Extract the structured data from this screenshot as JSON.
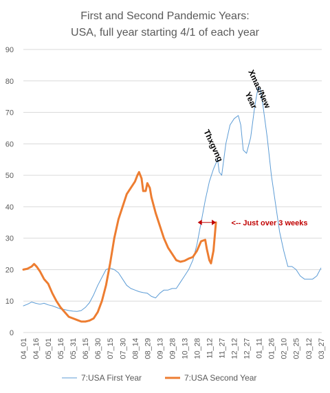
{
  "chart_data": {
    "type": "line",
    "title_lines": [
      "First and Second Pandemic Years:",
      "USA, full year starting 4/1 of each year"
    ],
    "ylim": [
      0,
      90
    ],
    "yticks": [
      0,
      10,
      20,
      30,
      40,
      50,
      60,
      70,
      80,
      90
    ],
    "grid": true,
    "legend_position": "bottom",
    "categories": [
      "04_01",
      "04_16",
      "05_01",
      "05_16",
      "05_31",
      "06_15",
      "06_30",
      "07_15",
      "07_30",
      "08_14",
      "08_29",
      "09_13",
      "09_28",
      "10_13",
      "10_28",
      "11_12",
      "11_27",
      "12_12",
      "12_27",
      "01_11",
      "01_26",
      "02_10",
      "02_25",
      "03_12",
      "03_27"
    ],
    "x_range": [
      0,
      361
    ],
    "x_tick_values": [
      0,
      15,
      30,
      45,
      60,
      75,
      90,
      105,
      120,
      135,
      150,
      165,
      180,
      195,
      210,
      225,
      240,
      255,
      270,
      285,
      300,
      315,
      330,
      345,
      360
    ],
    "series": [
      {
        "name": "7:USA First Year",
        "color": "#5b9bd5",
        "width": 1,
        "points": [
          [
            0,
            8.5
          ],
          [
            5,
            9
          ],
          [
            10,
            9.7
          ],
          [
            15,
            9.3
          ],
          [
            20,
            9
          ],
          [
            25,
            9.3
          ],
          [
            30,
            8.8
          ],
          [
            35,
            8.5
          ],
          [
            40,
            8
          ],
          [
            45,
            7.5
          ],
          [
            50,
            7.3
          ],
          [
            55,
            7
          ],
          [
            60,
            6.8
          ],
          [
            65,
            6.7
          ],
          [
            70,
            7
          ],
          [
            75,
            8
          ],
          [
            80,
            9.5
          ],
          [
            85,
            12
          ],
          [
            90,
            15
          ],
          [
            95,
            17.5
          ],
          [
            100,
            20
          ],
          [
            105,
            20.5
          ],
          [
            110,
            20
          ],
          [
            115,
            19
          ],
          [
            120,
            17
          ],
          [
            125,
            15
          ],
          [
            130,
            14
          ],
          [
            135,
            13.5
          ],
          [
            140,
            13
          ],
          [
            145,
            12.7
          ],
          [
            150,
            12.5
          ],
          [
            155,
            11.5
          ],
          [
            160,
            11
          ],
          [
            165,
            12.5
          ],
          [
            170,
            13.5
          ],
          [
            175,
            13.5
          ],
          [
            180,
            14
          ],
          [
            185,
            14
          ],
          [
            190,
            16
          ],
          [
            195,
            18
          ],
          [
            200,
            20
          ],
          [
            205,
            23
          ],
          [
            210,
            28
          ],
          [
            215,
            35
          ],
          [
            220,
            42
          ],
          [
            225,
            48
          ],
          [
            230,
            52
          ],
          [
            235,
            55
          ],
          [
            237,
            51
          ],
          [
            240,
            50
          ],
          [
            245,
            60
          ],
          [
            250,
            66
          ],
          [
            255,
            68
          ],
          [
            260,
            69
          ],
          [
            263,
            66
          ],
          [
            266,
            58
          ],
          [
            270,
            57
          ],
          [
            275,
            62
          ],
          [
            280,
            72
          ],
          [
            284,
            78
          ],
          [
            287,
            77
          ],
          [
            290,
            72
          ],
          [
            295,
            62
          ],
          [
            300,
            50
          ],
          [
            305,
            41
          ],
          [
            310,
            32
          ],
          [
            315,
            26
          ],
          [
            320,
            21
          ],
          [
            325,
            21
          ],
          [
            330,
            20
          ],
          [
            335,
            18
          ],
          [
            340,
            17
          ],
          [
            345,
            17
          ],
          [
            350,
            17
          ],
          [
            355,
            18
          ],
          [
            360,
            20.5
          ]
        ]
      },
      {
        "name": "7:USA Second Year",
        "color": "#ed7d31",
        "width": 3,
        "points": [
          [
            0,
            20
          ],
          [
            5,
            20.3
          ],
          [
            10,
            21
          ],
          [
            13,
            21.8
          ],
          [
            16,
            21
          ],
          [
            20,
            19.5
          ],
          [
            25,
            17
          ],
          [
            30,
            15.5
          ],
          [
            35,
            12.5
          ],
          [
            40,
            10
          ],
          [
            45,
            8
          ],
          [
            50,
            6.5
          ],
          [
            55,
            5
          ],
          [
            60,
            4.5
          ],
          [
            65,
            4
          ],
          [
            70,
            3.5
          ],
          [
            75,
            3.5
          ],
          [
            80,
            3.8
          ],
          [
            85,
            4.5
          ],
          [
            90,
            6.5
          ],
          [
            95,
            10
          ],
          [
            100,
            15
          ],
          [
            105,
            22
          ],
          [
            110,
            30
          ],
          [
            115,
            36
          ],
          [
            120,
            40
          ],
          [
            125,
            44
          ],
          [
            130,
            46
          ],
          [
            135,
            48
          ],
          [
            138,
            50
          ],
          [
            140,
            51
          ],
          [
            143,
            49
          ],
          [
            145,
            45
          ],
          [
            148,
            45
          ],
          [
            150,
            47.5
          ],
          [
            153,
            46
          ],
          [
            155,
            43
          ],
          [
            160,
            38
          ],
          [
            165,
            34
          ],
          [
            170,
            30
          ],
          [
            175,
            27
          ],
          [
            180,
            25
          ],
          [
            185,
            23
          ],
          [
            190,
            22.5
          ],
          [
            195,
            22.8
          ],
          [
            200,
            23.5
          ],
          [
            205,
            24
          ],
          [
            210,
            26
          ],
          [
            215,
            29
          ],
          [
            220,
            29.5
          ],
          [
            222,
            26.5
          ],
          [
            225,
            23
          ],
          [
            227,
            22
          ],
          [
            230,
            26
          ],
          [
            233,
            35
          ]
        ]
      }
    ],
    "annotations": [
      {
        "text": "Thxgvng",
        "x": 218,
        "y": 64,
        "rotate": 65
      },
      {
        "text": "Xmas/New",
        "x": 272,
        "y": 83,
        "rotate": 65
      },
      {
        "text": "Year",
        "x": 268,
        "y": 76,
        "rotate": 65
      },
      {
        "text": "<-- Just over 3 weeks",
        "x": 240,
        "y": 35
      }
    ],
    "bracket": {
      "x_start": 211,
      "x_end": 233,
      "y": 35,
      "color": "#c00000"
    }
  }
}
